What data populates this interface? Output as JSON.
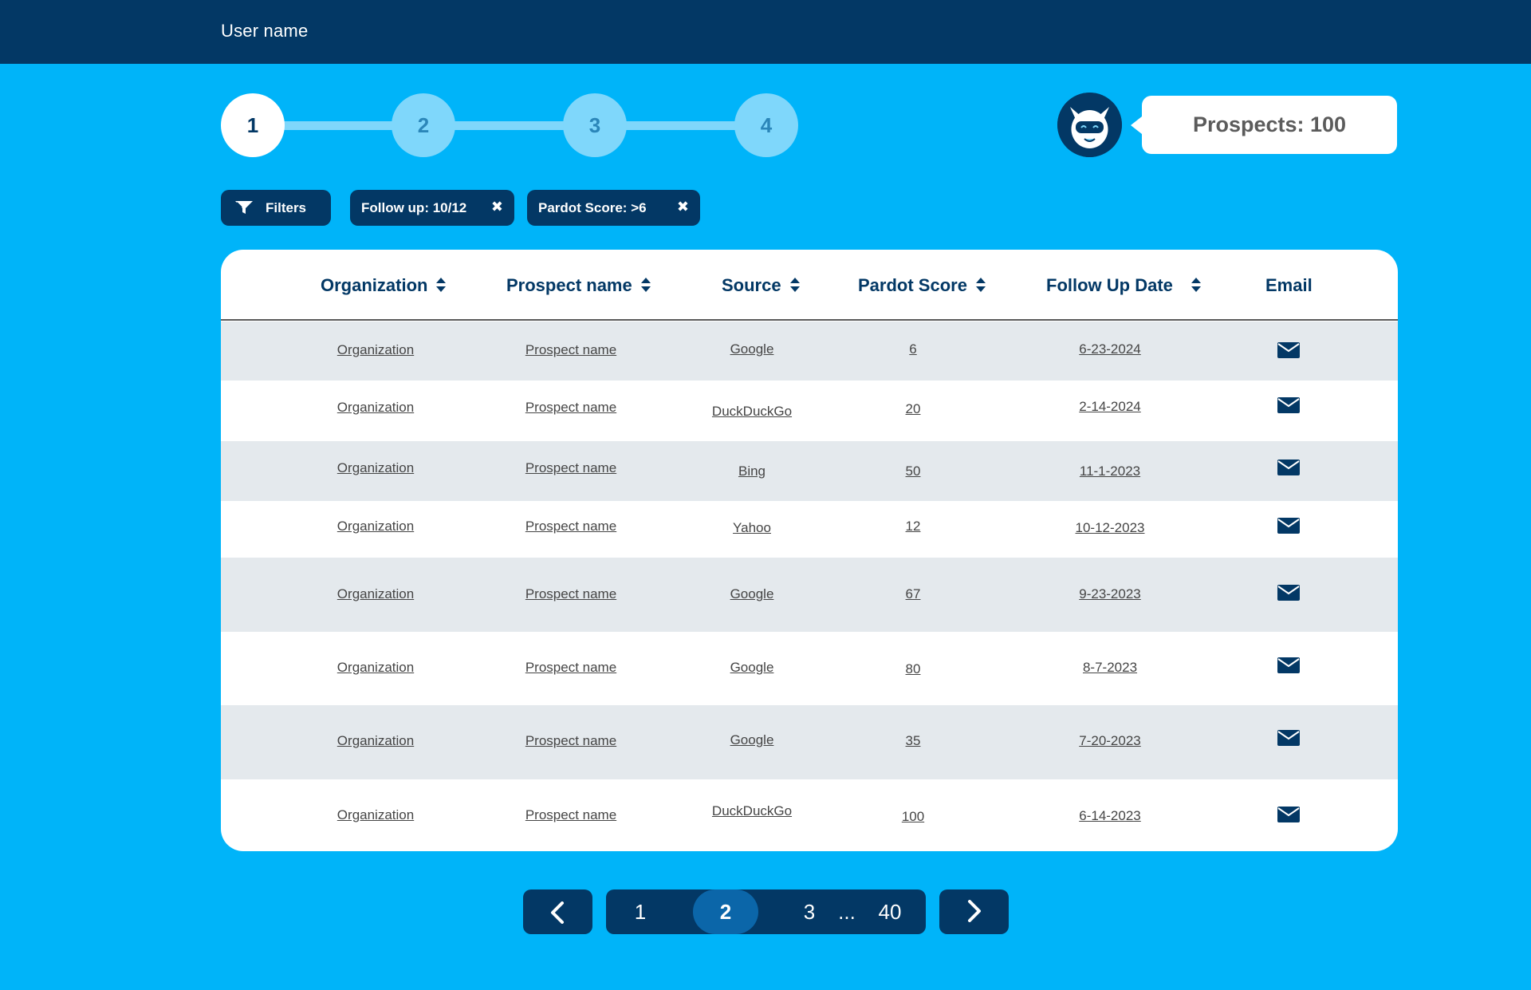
{
  "header": {
    "user_name": "User name"
  },
  "stepper": {
    "steps": [
      "1",
      "2",
      "3",
      "4"
    ],
    "active": "1"
  },
  "prospects": {
    "label": "Prospects: 100"
  },
  "filters": {
    "button_label": "Filters",
    "chips": [
      {
        "label": "Follow up: 10/12",
        "remove": "✖"
      },
      {
        "label": "Pardot Score: >6",
        "remove": "✖"
      }
    ]
  },
  "table": {
    "columns": [
      "Organization",
      "Prospect name",
      "Source",
      "Pardot Score",
      "Follow Up Date",
      "Email"
    ],
    "rows": [
      {
        "organization": "Organization",
        "prospect": "Prospect name",
        "source": "Google",
        "score": "6",
        "date": "6-23-2024"
      },
      {
        "organization": "Organization",
        "prospect": "Prospect name",
        "source": "DuckDuckGo",
        "score": "20",
        "date": "2-14-2024"
      },
      {
        "organization": "Organization",
        "prospect": "Prospect name",
        "source": "Bing",
        "score": "50",
        "date": "11-1-2023"
      },
      {
        "organization": "Organization",
        "prospect": "Prospect name",
        "source": "Yahoo",
        "score": "12",
        "date": "10-12-2023"
      },
      {
        "organization": "Organization",
        "prospect": "Prospect name",
        "source": "Google",
        "score": "67",
        "date": "9-23-2023"
      },
      {
        "organization": "Organization",
        "prospect": "Prospect name",
        "source": "Google",
        "score": "80",
        "date": "8-7-2023"
      },
      {
        "organization": "Organization",
        "prospect": "Prospect name",
        "source": "Google",
        "score": "35",
        "date": "7-20-2023"
      },
      {
        "organization": "Organization",
        "prospect": "Prospect name",
        "source": "DuckDuckGo",
        "score": "100",
        "date": "6-14-2023"
      }
    ]
  },
  "pagination": {
    "pages": [
      "1",
      "2",
      "3",
      "...",
      "40"
    ],
    "current": "2"
  },
  "colors": {
    "background": "#00b4f9",
    "navy": "#033865",
    "step_inactive": "#7fd7fb",
    "row_alt": "#e4e9ed",
    "page_current": "#0b66a9"
  },
  "icons": [
    "filter-icon",
    "close-icon",
    "sort-icon",
    "mail-icon",
    "chevron-left-icon",
    "chevron-right-icon",
    "robot-avatar-icon"
  ]
}
